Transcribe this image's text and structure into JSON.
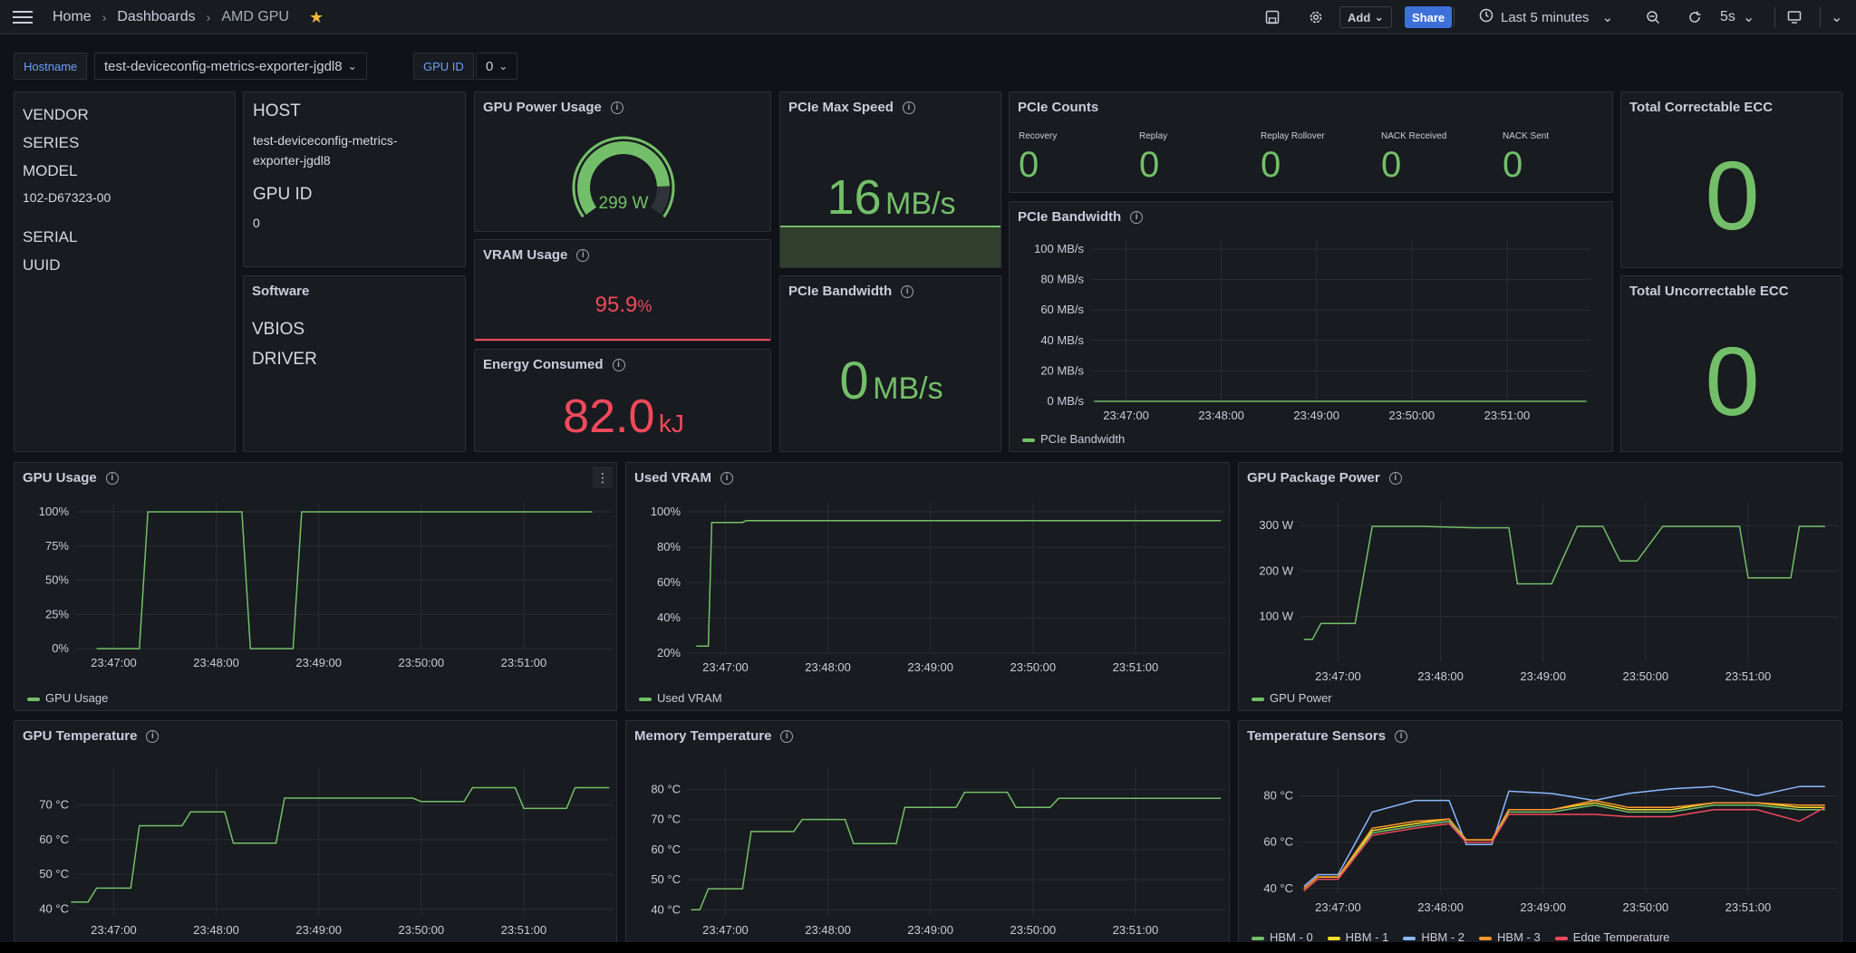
{
  "nav": {
    "breadcrumb": [
      "Home",
      "Dashboards",
      "AMD GPU"
    ],
    "add_label": "Add",
    "share_label": "Share",
    "time_range": "Last 5 minutes",
    "refresh": "5s"
  },
  "variables": {
    "hostname_label": "Hostname",
    "hostname_value": "test-deviceconfig-metrics-exporter-jgdl8",
    "gpuid_label": "GPU ID",
    "gpuid_value": "0"
  },
  "info_panel": {
    "vendor": "VENDOR",
    "series": "SERIES",
    "model": "MODEL",
    "model_value": "102-D67323-00",
    "serial": "SERIAL",
    "uuid": "UUID"
  },
  "host_panel": {
    "host_label": "HOST",
    "host_value_1": "test-deviceconfig-metrics-",
    "host_value_2": "exporter-jgdl8",
    "gpu_id_label": "GPU ID",
    "gpu_id_value": "0"
  },
  "software_panel": {
    "title": "Software",
    "vbios": "VBIOS",
    "driver": "DRIVER"
  },
  "gpu_power_usage": {
    "title": "GPU Power Usage",
    "value": "299 W",
    "fraction": 0.85
  },
  "vram_usage": {
    "title": "VRAM Usage",
    "value": "95.9",
    "unit": "%"
  },
  "energy": {
    "title": "Energy Consumed",
    "value": "82.0",
    "unit": "kJ"
  },
  "pcie_max_speed": {
    "title": "PCIe Max Speed",
    "value": "16",
    "unit": "MB/s"
  },
  "pcie_bw_stat": {
    "title": "PCIe Bandwidth",
    "value": "0",
    "unit": "MB/s"
  },
  "pcie_counts": {
    "title": "PCIe Counts",
    "items": [
      {
        "label": "Recovery",
        "value": "0"
      },
      {
        "label": "Replay",
        "value": "0"
      },
      {
        "label": "Replay Rollover",
        "value": "0"
      },
      {
        "label": "NACK Received",
        "value": "0"
      },
      {
        "label": "NACK Sent",
        "value": "0"
      }
    ]
  },
  "ecc": {
    "correctable_title": "Total Correctable ECC",
    "correctable_value": "0",
    "uncorrectable_title": "Total Uncorrectable ECC",
    "uncorrectable_value": "0"
  },
  "colors": {
    "green": "#73bf69",
    "red": "#f2495c",
    "yellow": "#fade2a",
    "blue": "#8ab8ff",
    "orange": "#ff9830",
    "accent": "#3d71d9"
  },
  "charts": {
    "pcie_bw": {
      "title": "PCIe Bandwidth",
      "legend": [
        "PCIe Bandwidth"
      ],
      "x_ticks": [
        "23:47:00",
        "23:48:00",
        "23:49:00",
        "23:50:00",
        "23:51:00"
      ],
      "y_ticks": [
        "100 MB/s",
        "80 MB/s",
        "60 MB/s",
        "40 MB/s",
        "20 MB/s",
        "0 MB/s"
      ]
    },
    "gpu_usage": {
      "title": "GPU Usage",
      "legend": [
        "GPU Usage"
      ],
      "x_ticks": [
        "23:47:00",
        "23:48:00",
        "23:49:00",
        "23:50:00",
        "23:51:00"
      ],
      "y_ticks": [
        "100%",
        "75%",
        "50%",
        "25%",
        "0%"
      ]
    },
    "used_vram": {
      "title": "Used VRAM",
      "legend": [
        "Used VRAM"
      ],
      "x_ticks": [
        "23:47:00",
        "23:48:00",
        "23:49:00",
        "23:50:00",
        "23:51:00"
      ],
      "y_ticks": [
        "100%",
        "80%",
        "60%",
        "40%",
        "20%"
      ]
    },
    "pkg_power": {
      "title": "GPU Package Power",
      "legend": [
        "GPU Power"
      ],
      "x_ticks": [
        "23:47:00",
        "23:48:00",
        "23:49:00",
        "23:50:00",
        "23:51:00"
      ],
      "y_ticks": [
        "300 W",
        "200 W",
        "100 W"
      ]
    },
    "gpu_temp": {
      "title": "GPU Temperature",
      "x_ticks": [
        "23:47:00",
        "23:48:00",
        "23:49:00",
        "23:50:00",
        "23:51:00"
      ],
      "y_ticks": [
        "70 °C",
        "60 °C",
        "50 °C",
        "40 °C"
      ]
    },
    "mem_temp": {
      "title": "Memory Temperature",
      "x_ticks": [
        "23:47:00",
        "23:48:00",
        "23:49:00",
        "23:50:00",
        "23:51:00"
      ],
      "y_ticks": [
        "80 °C",
        "70 °C",
        "60 °C",
        "50 °C",
        "40 °C"
      ]
    },
    "temp_sensors": {
      "title": "Temperature Sensors",
      "legend": [
        "HBM - 0",
        "HBM - 1",
        "HBM - 2",
        "HBM - 3",
        "Edge Temperature"
      ],
      "x_ticks": [
        "23:47:00",
        "23:48:00",
        "23:49:00",
        "23:50:00",
        "23:51:00"
      ],
      "y_ticks": [
        "80 °C",
        "60 °C",
        "40 °C"
      ]
    }
  },
  "chart_data": [
    {
      "type": "line",
      "title": "PCIe Bandwidth",
      "ylabel": "",
      "x": [
        "23:46:40",
        "23:51:50"
      ],
      "ylim": [
        0,
        100
      ],
      "series": [
        {
          "name": "PCIe Bandwidth",
          "values": [
            0,
            0
          ]
        }
      ]
    },
    {
      "type": "line",
      "title": "GPU Usage",
      "ylim": [
        0,
        100
      ],
      "x": [
        "23:46:50",
        "23:47:15",
        "23:47:20",
        "23:48:15",
        "23:48:20",
        "23:48:45",
        "23:48:50",
        "23:51:40"
      ],
      "series": [
        {
          "name": "GPU Usage",
          "values": [
            0,
            0,
            100,
            100,
            0,
            0,
            100,
            100
          ]
        }
      ]
    },
    {
      "type": "line",
      "title": "Used VRAM",
      "ylim": [
        20,
        100
      ],
      "x": [
        "23:46:43",
        "23:46:50",
        "23:46:52",
        "23:47:10",
        "23:47:12",
        "23:51:50"
      ],
      "series": [
        {
          "name": "Used VRAM",
          "values": [
            24,
            24,
            94,
            94,
            95,
            95
          ]
        }
      ]
    },
    {
      "type": "line",
      "title": "GPU Package Power",
      "ylim": [
        0,
        330
      ],
      "x": [
        "23:46:40",
        "23:46:45",
        "23:46:50",
        "23:47:10",
        "23:47:20",
        "23:47:50",
        "23:48:20",
        "23:48:40",
        "23:48:45",
        "23:49:05",
        "23:49:20",
        "23:49:25",
        "23:49:35",
        "23:49:45",
        "23:49:55",
        "23:50:10",
        "23:50:55",
        "23:51:00",
        "23:51:25",
        "23:51:30",
        "23:51:45"
      ],
      "series": [
        {
          "name": "GPU Power",
          "values": [
            50,
            50,
            85,
            85,
            298,
            298,
            295,
            295,
            172,
            172,
            298,
            298,
            298,
            222,
            222,
            298,
            298,
            185,
            185,
            298,
            298
          ]
        }
      ]
    },
    {
      "type": "line",
      "title": "GPU Temperature",
      "ylim": [
        38,
        78
      ],
      "x": [
        "23:46:35",
        "23:46:45",
        "23:46:50",
        "23:47:10",
        "23:47:15",
        "23:47:40",
        "23:47:45",
        "23:48:05",
        "23:48:10",
        "23:48:35",
        "23:48:40",
        "23:49:55",
        "23:50:00",
        "23:50:25",
        "23:50:30",
        "23:50:55",
        "23:51:00",
        "23:51:25",
        "23:51:30",
        "23:51:50"
      ],
      "series": [
        {
          "name": "GPU Temperature",
          "values": [
            42,
            42,
            46,
            46,
            64,
            64,
            68,
            68,
            59,
            59,
            72,
            72,
            71,
            71,
            75,
            75,
            69,
            69,
            75,
            75
          ]
        }
      ]
    },
    {
      "type": "line",
      "title": "Memory Temperature",
      "ylim": [
        38,
        84
      ],
      "x": [
        "23:46:40",
        "23:46:45",
        "23:46:50",
        "23:47:10",
        "23:47:15",
        "23:47:40",
        "23:47:45",
        "23:48:10",
        "23:48:15",
        "23:48:40",
        "23:48:45",
        "23:49:15",
        "23:49:20",
        "23:49:45",
        "23:49:50",
        "23:50:10",
        "23:50:15",
        "23:51:50"
      ],
      "series": [
        {
          "name": "Memory Temperature",
          "values": [
            40,
            40,
            47,
            47,
            66,
            66,
            70,
            70,
            62,
            62,
            74,
            74,
            79,
            79,
            74,
            74,
            77,
            77
          ]
        }
      ]
    },
    {
      "type": "line",
      "title": "Temperature Sensors",
      "ylim": [
        38,
        88
      ],
      "x": [
        "23:46:40",
        "23:46:48",
        "23:47:00",
        "23:47:20",
        "23:47:45",
        "23:48:05",
        "23:48:15",
        "23:48:30",
        "23:48:40",
        "23:49:05",
        "23:49:30",
        "23:49:50",
        "23:50:15",
        "23:50:40",
        "23:51:05",
        "23:51:30",
        "23:51:45"
      ],
      "series": [
        {
          "name": "HBM - 0",
          "values": [
            40,
            45,
            45,
            64,
            67,
            69,
            60,
            60,
            73,
            73,
            76,
            73,
            73,
            76,
            76,
            74,
            74
          ]
        },
        {
          "name": "HBM - 1",
          "values": [
            40,
            45,
            45,
            65,
            68,
            70,
            61,
            61,
            74,
            74,
            77,
            74,
            74,
            77,
            77,
            75,
            75
          ]
        },
        {
          "name": "HBM - 2",
          "values": [
            41,
            46,
            46,
            73,
            78,
            78,
            59,
            59,
            82,
            81,
            78,
            81,
            83,
            84,
            80,
            84,
            84
          ]
        },
        {
          "name": "HBM - 3",
          "values": [
            40,
            45,
            45,
            66,
            69,
            70,
            61,
            61,
            74,
            74,
            78,
            75,
            75,
            77,
            77,
            76,
            76
          ]
        },
        {
          "name": "Edge Temperature",
          "values": [
            39,
            44,
            44,
            63,
            66,
            68,
            60,
            60,
            72,
            72,
            72,
            71,
            71,
            74,
            74,
            69,
            75
          ]
        }
      ]
    }
  ]
}
